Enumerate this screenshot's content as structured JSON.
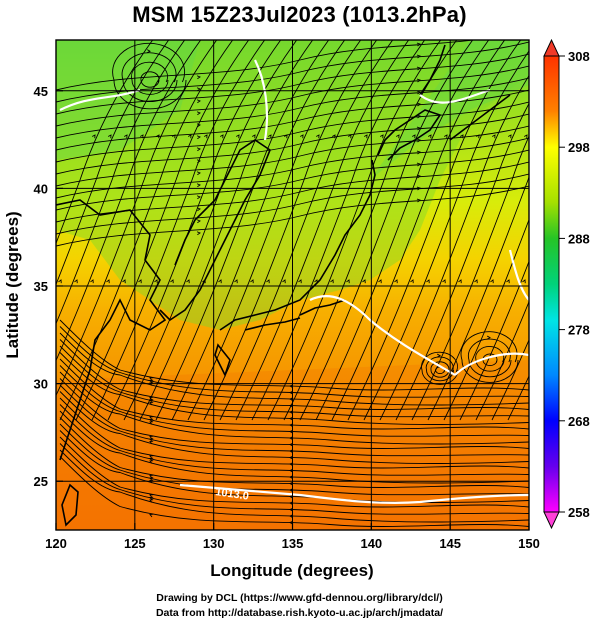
{
  "title": "MSM 15Z23Jul2023 (1013.2hPa)",
  "map": {
    "projection": "equirectangular",
    "lon_range": [
      120,
      150
    ],
    "lat_range": [
      22.5,
      47.6
    ],
    "x_ticks": [
      120,
      125,
      130,
      135,
      140,
      145,
      150
    ],
    "y_ticks": [
      25,
      30,
      35,
      40,
      45
    ],
    "x_label": "Longitude (degrees)",
    "y_label": "Latitude  (degrees)",
    "field": "temperature shading with streamlines",
    "contour_label": "1013.0"
  },
  "colorbar": {
    "min": 258,
    "max": 308,
    "tick_labels": [
      "308",
      "298",
      "288",
      "278",
      "268",
      "258"
    ],
    "colors": [
      "#ff00ff",
      "#6600ee",
      "#0000ff",
      "#0088ff",
      "#00e5e5",
      "#00d27a",
      "#26c426",
      "#a6e000",
      "#ffff00",
      "#ffcc00",
      "#ff8000",
      "#ff3300"
    ]
  },
  "credits": {
    "line1": "Drawing by DCL (https://www.gfd-dennou.org/library/dcl/)",
    "line2": "Data from http://database.rish.kyoto-u.ac.jp/arch/jmadata/"
  }
}
